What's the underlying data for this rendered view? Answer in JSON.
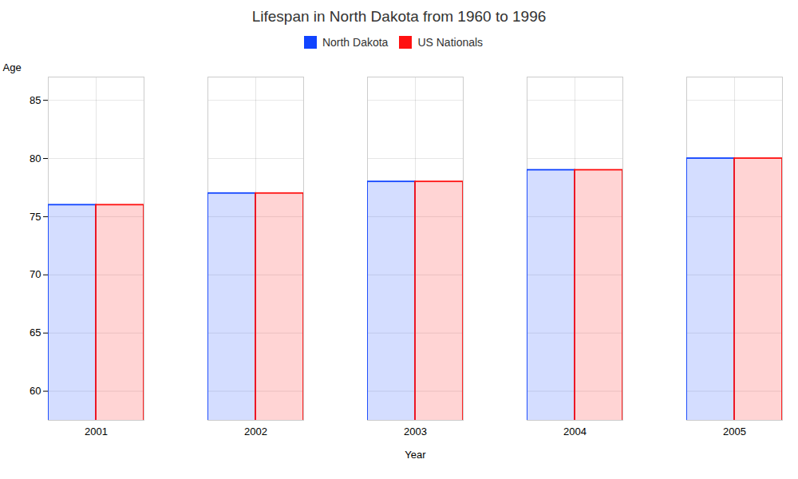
{
  "chart_data": {
    "type": "bar",
    "title": "Lifespan in North Dakota from 1960 to 1996",
    "x_label": "Year",
    "y_label": "Age",
    "categories": [
      "2001",
      "2002",
      "2003",
      "2004",
      "2005"
    ],
    "series": [
      {
        "name": "North Dakota",
        "color": "#1144ff",
        "values": [
          76,
          77,
          78,
          79,
          80
        ]
      },
      {
        "name": "US Nationals",
        "color": "#ff1111",
        "values": [
          76,
          77,
          78,
          79,
          80
        ]
      }
    ],
    "ylim": [
      57.5,
      87
    ],
    "yticks": [
      60,
      65,
      70,
      75,
      80,
      85
    ],
    "grid": true,
    "legend": "top"
  }
}
